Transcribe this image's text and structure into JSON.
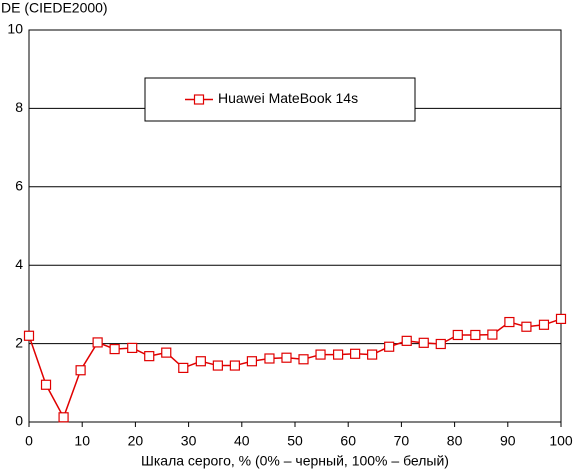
{
  "chart_data": {
    "type": "line",
    "ylabel": "DE (CIEDE2000)",
    "xlabel": "Шкала серого, % (0% – черный, 100% – белый)",
    "x": [
      0,
      3.2,
      6.5,
      9.7,
      12.9,
      16.1,
      19.4,
      22.6,
      25.8,
      29,
      32.3,
      35.5,
      38.7,
      41.9,
      45.2,
      48.4,
      51.6,
      54.8,
      58.1,
      61.3,
      64.5,
      67.7,
      71,
      74.2,
      77.4,
      80.6,
      83.9,
      87.1,
      90.3,
      93.5,
      96.8,
      100
    ],
    "series": [
      {
        "name": "Huawei MateBook 14s",
        "color": "#e00000",
        "values": [
          2.2,
          0.95,
          0.12,
          1.32,
          2.03,
          1.86,
          1.89,
          1.68,
          1.77,
          1.38,
          1.55,
          1.44,
          1.44,
          1.55,
          1.62,
          1.64,
          1.6,
          1.72,
          1.72,
          1.74,
          1.72,
          1.92,
          2.07,
          2.02,
          1.99,
          2.22,
          2.22,
          2.23,
          2.55,
          2.43,
          2.48,
          2.63
        ]
      }
    ],
    "xlim": [
      0,
      100
    ],
    "xticks": [
      0,
      10,
      20,
      30,
      40,
      50,
      60,
      70,
      80,
      90,
      100
    ],
    "ylim": [
      0,
      10
    ],
    "yticks": [
      0,
      2,
      4,
      6,
      8,
      10
    ],
    "grid": true,
    "legend": "top"
  }
}
